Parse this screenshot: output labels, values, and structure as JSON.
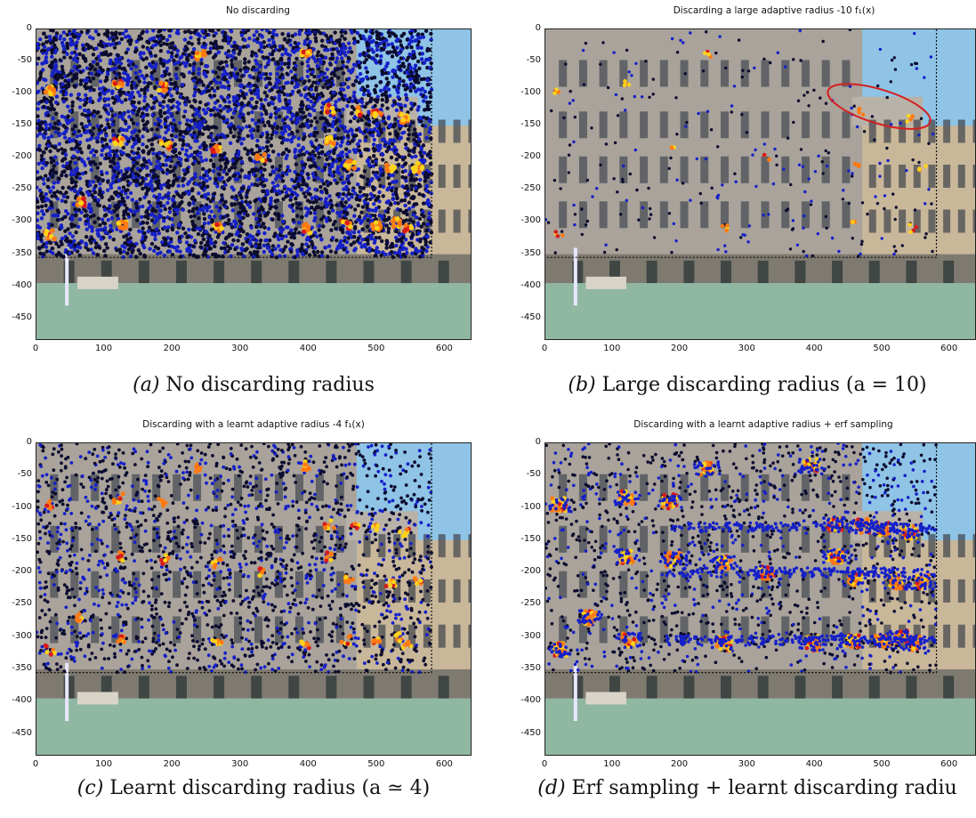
{
  "panels": [
    {
      "title": "No discarding",
      "caption_letter": "(a)",
      "caption_text": "No discarding radius",
      "density": "dense",
      "ellipse": false
    },
    {
      "title": "Discarding a large adaptive radius -10 f₁(x)",
      "caption_letter": "(b)",
      "caption_text": "Large discarding radius (a = 10)",
      "density": "sparse",
      "ellipse": true
    },
    {
      "title": "Discarding with a learnt adaptive radius -4 f₁(x)",
      "caption_letter": "(c)",
      "caption_text": "Learnt discarding radius (a ≃ 4)",
      "density": "medium",
      "ellipse": false
    },
    {
      "title": "Discarding with a learnt adaptive radius + erf sampling",
      "caption_letter": "(d)",
      "caption_text": "Erf sampling + learnt discarding radiu",
      "density": "erf",
      "ellipse": false
    }
  ],
  "axes": {
    "yticks": [
      "0",
      "-50",
      "-100",
      "-150",
      "-200",
      "-250",
      "-300",
      "-350",
      "-400",
      "-450"
    ],
    "xticks": [
      "0",
      "100",
      "200",
      "300",
      "400",
      "500",
      "600"
    ],
    "x_range": [
      0,
      640
    ],
    "y_range": [
      -485,
      0
    ],
    "sampling_window": {
      "x": [
        0,
        580
      ],
      "y": [
        -355,
        0
      ]
    }
  },
  "colors": {
    "sky": "#8fc4e6",
    "facade": "#a9a39b",
    "water": "#8fb7a2",
    "point_dark": "#0b0b2e",
    "point_blue": "#1520c8",
    "hot_orange": "#ff7a12",
    "hot_yellow": "#ffd21a",
    "hot_red": "#d81b1b",
    "ellipse": "#d42020"
  }
}
